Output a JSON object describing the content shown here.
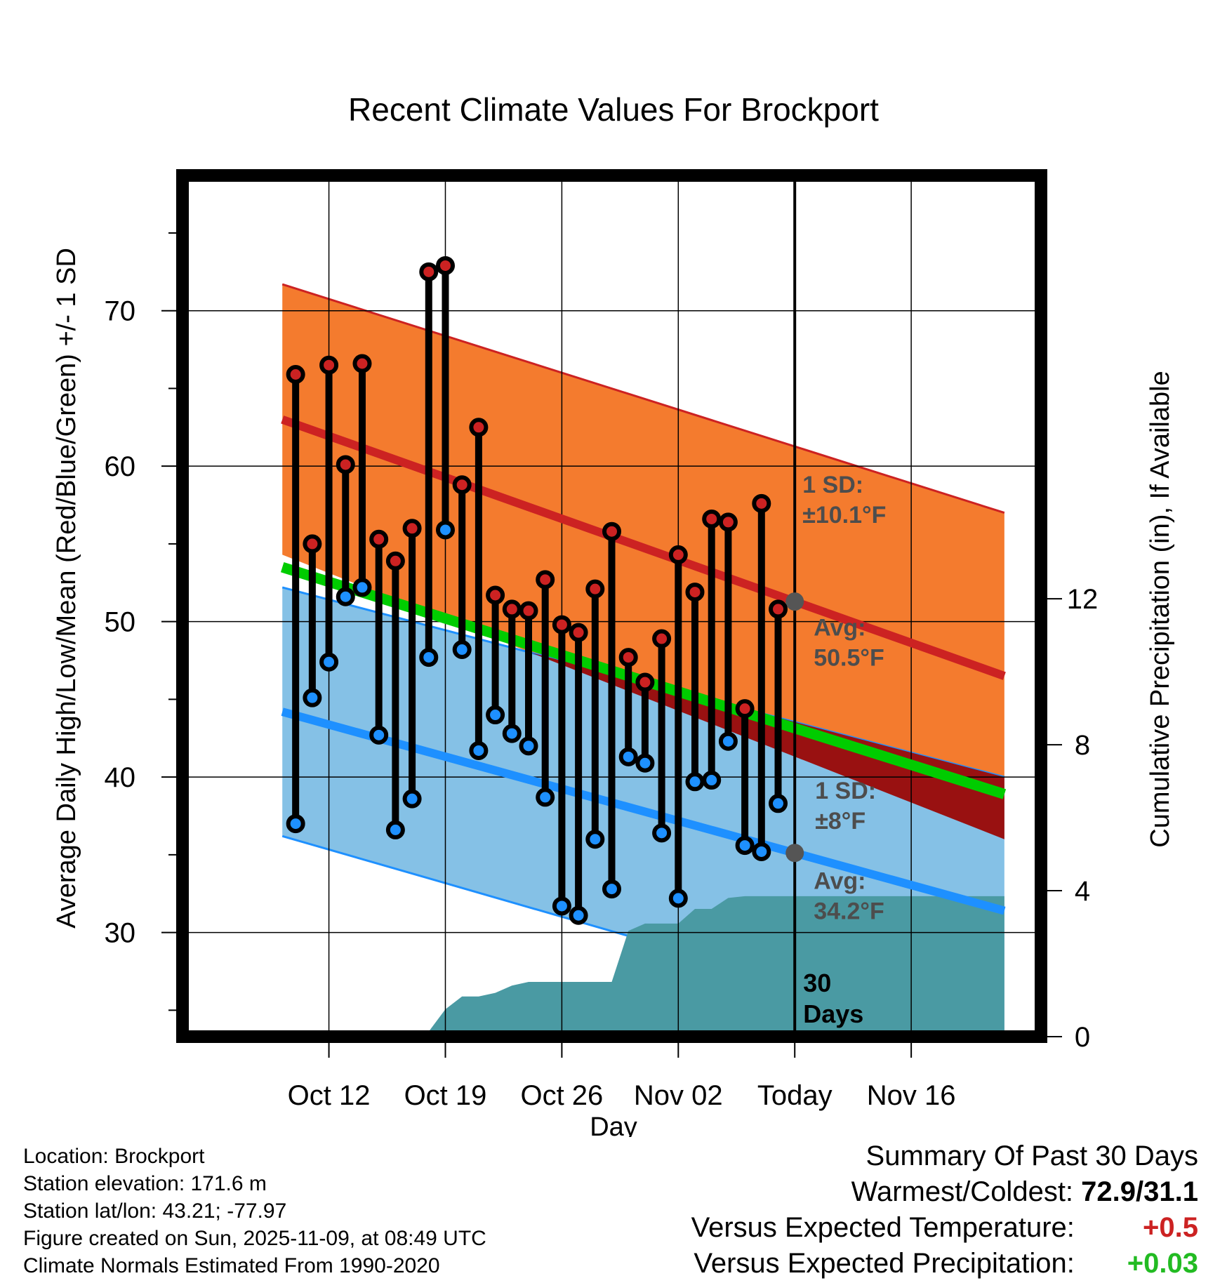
{
  "chart_data": {
    "type": "line",
    "title": "Recent Climate Values For Brockport",
    "xlabel": "Day",
    "ylabel_left": "Average Daily High/Low/Mean (Red/Blue/Green) +/- 1 SD",
    "ylabel_right": "Cumulative Precipitation (in), If Available",
    "ylim": [
      23.3,
      78.7
    ],
    "y_ticks": [
      30,
      40,
      50,
      60,
      70
    ],
    "x_range": [
      -8.8,
      42.8
    ],
    "x_ticks": [
      {
        "day": 0,
        "label": "Oct 12"
      },
      {
        "day": 7,
        "label": "Oct 19"
      },
      {
        "day": 14,
        "label": "Oct 26"
      },
      {
        "day": 21,
        "label": "Nov 02"
      },
      {
        "day": 28,
        "label": "Today"
      },
      {
        "day": 35,
        "label": "Nov 16"
      }
    ],
    "precip_axis": {
      "ylim": [
        0,
        23.6
      ],
      "ticks": [
        0,
        4,
        8,
        12
      ]
    },
    "normals": {
      "x": [
        -2.8,
        40.6
      ],
      "high_mean": [
        63.0,
        46.5
      ],
      "high_sd_band_upper": [
        71.7,
        57.0
      ],
      "low_mean": [
        44.2,
        31.4
      ],
      "low_sd_band_lower": [
        36.2,
        22.8
      ],
      "mean": [
        53.5,
        38.9
      ]
    },
    "series": [
      {
        "name": "High",
        "color": "#cc2222",
        "x": [
          -2,
          -1,
          0,
          1,
          2,
          3,
          4,
          5,
          6,
          7,
          8,
          9,
          10,
          11,
          12,
          13,
          14,
          15,
          16,
          17,
          18,
          19,
          20,
          21,
          22,
          23,
          24,
          25,
          26,
          27
        ],
        "values": [
          65.9,
          55.0,
          66.5,
          60.1,
          66.6,
          55.3,
          53.9,
          56.0,
          72.5,
          72.9,
          58.8,
          62.5,
          51.7,
          50.8,
          50.7,
          52.7,
          49.8,
          49.3,
          52.1,
          55.8,
          47.7,
          46.1,
          48.9,
          54.3,
          51.9,
          56.6,
          56.4,
          44.4,
          57.6,
          50.8
        ]
      },
      {
        "name": "Low",
        "color": "#1e90ff",
        "x": [
          -2,
          -1,
          0,
          1,
          2,
          3,
          4,
          5,
          6,
          7,
          8,
          9,
          10,
          11,
          12,
          13,
          14,
          15,
          16,
          17,
          18,
          19,
          20,
          21,
          22,
          23,
          24,
          25,
          26,
          27
        ],
        "values": [
          37.0,
          45.1,
          47.4,
          51.6,
          52.2,
          42.7,
          36.6,
          38.6,
          47.7,
          55.9,
          48.2,
          41.7,
          44.0,
          42.8,
          42.0,
          38.7,
          31.7,
          31.1,
          36.0,
          32.8,
          41.3,
          40.9,
          36.4,
          32.2,
          39.7,
          39.8,
          42.3,
          35.6,
          35.2,
          38.3
        ]
      }
    ],
    "precipitation": {
      "x": [
        -2.8,
        -1,
        0,
        1,
        2,
        3,
        4,
        5,
        6,
        7,
        8,
        9,
        10,
        11,
        12,
        13,
        14,
        15,
        16,
        17,
        18,
        19,
        20,
        21,
        22,
        23,
        24,
        25,
        26,
        27,
        28,
        40.6
      ],
      "values": [
        0,
        0.02,
        0.02,
        0.03,
        0.04,
        0.04,
        0.04,
        0.12,
        0.14,
        0.75,
        1.1,
        1.1,
        1.2,
        1.4,
        1.5,
        1.5,
        1.5,
        1.5,
        1.5,
        1.5,
        2.9,
        3.1,
        3.1,
        3.1,
        3.5,
        3.5,
        3.8,
        3.85,
        3.85,
        3.85,
        3.85,
        3.85
      ]
    },
    "annotations": {
      "high_sd": [
        "1 SD:",
        "±10.1°F"
      ],
      "high_avg": [
        "Avg:",
        "50.5°F"
      ],
      "low_sd": [
        "1 SD:",
        "±8°F"
      ],
      "low_avg": [
        "Avg:",
        "34.2°F"
      ],
      "days": [
        "30",
        "Days"
      ]
    },
    "colors": {
      "high_band": "#f47b2e",
      "high_line": "#cc2222",
      "low_band": "#85c1e6",
      "low_line": "#1e90ff",
      "mean_line": "#00cc00",
      "precip": "#4a9aa3",
      "overlap": "#991111"
    }
  },
  "footer": {
    "location": "Location: Brockport",
    "elevation": "Station elevation: 171.6 m",
    "latlon": "Station lat/lon: 43.21; -77.97",
    "created": "Figure created on Sun, 2025-11-09, at 08:49 UTC",
    "normals": "Climate Normals Estimated From 1990-2020"
  },
  "summary": {
    "heading": "Summary Of Past 30 Days",
    "warmest_label": "Warmest/Coldest:",
    "warmest_value": "72.9/31.1",
    "temp_label": "Versus Expected Temperature:",
    "temp_value": "+0.5",
    "temp_color": "#cc2222",
    "precip_label": "Versus Expected Precipitation:",
    "precip_value": "+0.03",
    "precip_color": "#22bb22"
  }
}
